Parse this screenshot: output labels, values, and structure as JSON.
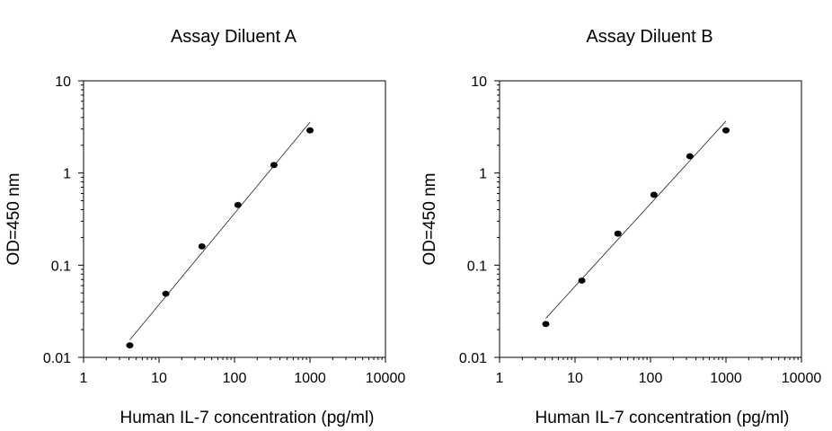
{
  "chart_data": [
    {
      "type": "scatter",
      "title": "Assay Diluent A",
      "xlabel": "Human IL-7 concentration (pg/ml)",
      "ylabel": "OD=450 nm",
      "xscale": "log",
      "yscale": "log",
      "xlim": [
        1,
        10000
      ],
      "ylim": [
        0.01,
        10
      ],
      "xticks": [
        "1",
        "10",
        "100",
        "1000",
        "10000"
      ],
      "yticks": [
        "0.01",
        "0.1",
        "1",
        "10"
      ],
      "grid": false,
      "legend": "none",
      "series": [
        {
          "x": [
            4.1,
            12.3,
            37,
            111,
            333,
            1000
          ],
          "y": [
            0.0135,
            0.049,
            0.16,
            0.45,
            1.22,
            2.9
          ]
        }
      ],
      "fit_line": {
        "x": [
          4.1,
          1000
        ],
        "y": [
          0.0155,
          3.55
        ]
      }
    },
    {
      "type": "scatter",
      "title": "Assay Diluent B",
      "xlabel": "Human IL-7 concentration (pg/ml)",
      "ylabel": "OD=450 nm",
      "xscale": "log",
      "yscale": "log",
      "xlim": [
        1,
        10000
      ],
      "ylim": [
        0.01,
        10
      ],
      "xticks": [
        "1",
        "10",
        "100",
        "1000",
        "10000"
      ],
      "yticks": [
        "0.01",
        "0.1",
        "1",
        "10"
      ],
      "grid": false,
      "legend": "none",
      "series": [
        {
          "x": [
            4.1,
            12.3,
            37,
            111,
            333,
            1000
          ],
          "y": [
            0.023,
            0.068,
            0.22,
            0.58,
            1.52,
            2.9
          ]
        }
      ],
      "fit_line": {
        "x": [
          4.1,
          1000
        ],
        "y": [
          0.0265,
          3.65
        ]
      }
    }
  ]
}
